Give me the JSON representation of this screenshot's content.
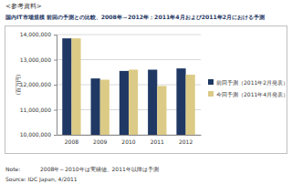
{
  "header": "<参考資料>",
  "chart_data": {
    "type": "bar",
    "title": "国内IT市場規模 前回の予測との比較、2008年～2012年：2011年4月および2011年2月における予測",
    "y_label": "(百万円)",
    "categories": [
      "2008",
      "2009",
      "2010",
      "2011",
      "2012"
    ],
    "series": [
      {
        "name": "前回予測（2011年2月発表）",
        "color": "#1f3864",
        "values": [
          13850000,
          12250000,
          12550000,
          12600000,
          12650000
        ]
      },
      {
        "name": "今回予測（2011年4月発表）",
        "color": "#dccb86",
        "values": [
          13850000,
          12200000,
          12600000,
          11950000,
          12400000
        ]
      }
    ],
    "ylim": [
      10000000,
      14000000
    ],
    "yticks": [
      {
        "value": 10000000,
        "label": "10,000,000"
      },
      {
        "value": 11000000,
        "label": "11,000,000"
      },
      {
        "value": 12000000,
        "label": "12,000,000"
      },
      {
        "value": 13000000,
        "label": "13,000,000"
      },
      {
        "value": 14000000,
        "label": "14,000,000"
      }
    ],
    "grid": true,
    "legend": "right"
  },
  "note_label": "Note:",
  "note": "2008年～2010年は実績値、2011年以降は予測",
  "source": "Source: IDC Japan, 4/2011"
}
